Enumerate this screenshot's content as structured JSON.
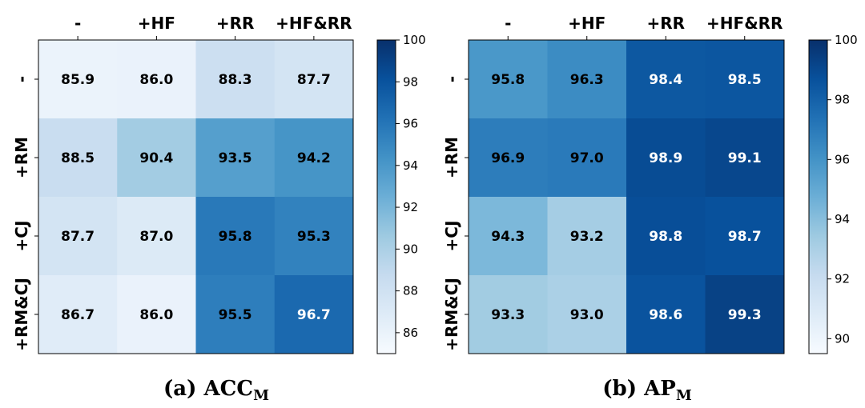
{
  "chart_data": [
    {
      "type": "heatmap",
      "caption_prefix": "(a) ACC",
      "caption_sub": "M",
      "x_categories": [
        "-",
        "+HF",
        "+RR",
        "+HF&RR"
      ],
      "y_categories": [
        "-",
        "+RM",
        "+CJ",
        "+RM&CJ"
      ],
      "values": [
        [
          85.9,
          86.0,
          88.3,
          87.7
        ],
        [
          88.5,
          90.4,
          93.5,
          94.2
        ],
        [
          87.7,
          87.0,
          95.8,
          95.3
        ],
        [
          86.7,
          86.0,
          95.5,
          96.7
        ]
      ],
      "colorbar": {
        "min": 85,
        "max": 100,
        "ticks": [
          86,
          88,
          90,
          92,
          94,
          96,
          98,
          100
        ]
      },
      "colormap": "Blues"
    },
    {
      "type": "heatmap",
      "caption_prefix": "(b) AP",
      "caption_sub": "M",
      "x_categories": [
        "-",
        "+HF",
        "+RR",
        "+HF&RR"
      ],
      "y_categories": [
        "-",
        "+RM",
        "+CJ",
        "+RM&CJ"
      ],
      "values": [
        [
          95.8,
          96.3,
          98.4,
          98.5
        ],
        [
          96.9,
          97.0,
          98.9,
          99.1
        ],
        [
          94.3,
          93.2,
          98.8,
          98.7
        ],
        [
          93.3,
          93.0,
          98.6,
          99.3
        ]
      ],
      "colorbar": {
        "min": 89.5,
        "max": 100,
        "ticks": [
          90,
          92,
          94,
          96,
          98,
          100
        ]
      },
      "colormap": "Blues"
    }
  ]
}
